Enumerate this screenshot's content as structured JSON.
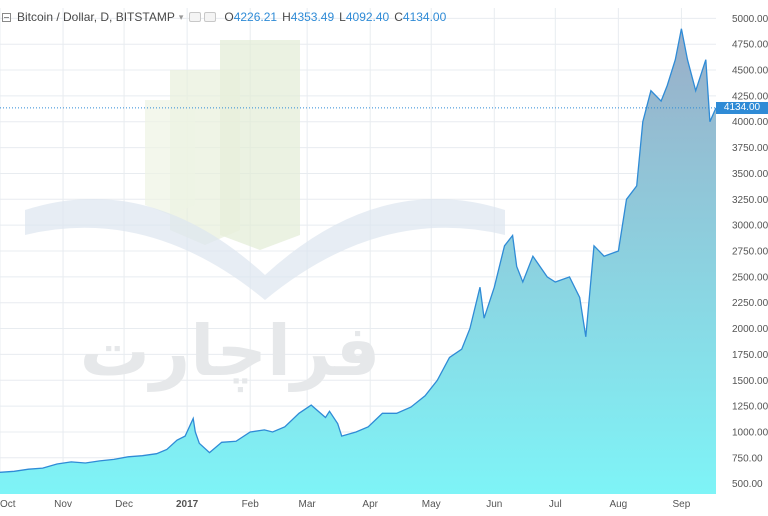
{
  "legend": {
    "title": "Bitcoin / Dollar, D, BITSTAMP",
    "open_key": "O",
    "open": "4226.21",
    "high_key": "H",
    "high": "4353.49",
    "low_key": "L",
    "low": "4092.40",
    "close_key": "C",
    "close": "4134.00"
  },
  "colors": {
    "line": "#2f8bd6",
    "fill_top": "#9aaec8",
    "fill_bottom": "#7ef4f7",
    "grid": "#e8ecf0",
    "axis_text": "#555555",
    "last_price": "#2f8bd6",
    "watermark": "#e2ecd6"
  },
  "watermark_text": "فراچارت",
  "chart_data": {
    "type": "area",
    "title": "Bitcoin / Dollar, D, BITSTAMP",
    "grid": true,
    "last_price": 4134.0,
    "last_price_label": "4134.00",
    "ylim": [
      400,
      5100
    ],
    "yticks": [
      500,
      750,
      1000,
      1250,
      1500,
      1750,
      2000,
      2250,
      2500,
      2750,
      3000,
      3250,
      3500,
      3750,
      4000,
      4250,
      4500,
      4750,
      5000
    ],
    "ytick_labels": [
      "500.00",
      "750.00",
      "1000.00",
      "1250.00",
      "1500.00",
      "1750.00",
      "2000.00",
      "2250.00",
      "2500.00",
      "2750.00",
      "3000.00",
      "3250.00",
      "3500.00",
      "3750.00",
      "4000.00",
      "4250.00",
      "4500.00",
      "4750.00",
      "5000.00"
    ],
    "xlim": [
      "2016-10-01",
      "2017-09-18"
    ],
    "xticks": [
      "2016-10-01",
      "2016-11-01",
      "2016-12-01",
      "2017-01-01",
      "2017-02-01",
      "2017-03-01",
      "2017-04-01",
      "2017-05-01",
      "2017-06-01",
      "2017-07-01",
      "2017-08-01",
      "2017-09-01"
    ],
    "xtick_labels": [
      "Oct",
      "Nov",
      "Dec",
      "2017",
      "Feb",
      "Mar",
      "Apr",
      "May",
      "Jun",
      "Jul",
      "Aug",
      "Sep"
    ],
    "series": [
      {
        "x": [
          "2016-10-01",
          "2016-10-08",
          "2016-10-15",
          "2016-10-22",
          "2016-10-29",
          "2016-11-05",
          "2016-11-12",
          "2016-11-19",
          "2016-11-26",
          "2016-12-03",
          "2016-12-10",
          "2016-12-17",
          "2016-12-22",
          "2016-12-27",
          "2016-12-31",
          "2017-01-04",
          "2017-01-05",
          "2017-01-07",
          "2017-01-12",
          "2017-01-18",
          "2017-01-25",
          "2017-02-01",
          "2017-02-08",
          "2017-02-12",
          "2017-02-18",
          "2017-02-25",
          "2017-03-03",
          "2017-03-10",
          "2017-03-12",
          "2017-03-16",
          "2017-03-18",
          "2017-03-25",
          "2017-03-31",
          "2017-04-07",
          "2017-04-14",
          "2017-04-21",
          "2017-04-28",
          "2017-05-04",
          "2017-05-10",
          "2017-05-16",
          "2017-05-20",
          "2017-05-25",
          "2017-05-27",
          "2017-06-01",
          "2017-06-06",
          "2017-06-10",
          "2017-06-12",
          "2017-06-15",
          "2017-06-20",
          "2017-06-27",
          "2017-07-01",
          "2017-07-08",
          "2017-07-13",
          "2017-07-16",
          "2017-07-20",
          "2017-07-25",
          "2017-08-01",
          "2017-08-05",
          "2017-08-10",
          "2017-08-13",
          "2017-08-17",
          "2017-08-22",
          "2017-08-25",
          "2017-08-29",
          "2017-09-01",
          "2017-09-04",
          "2017-09-08",
          "2017-09-13",
          "2017-09-15",
          "2017-09-18"
        ],
        "y": [
          610,
          620,
          640,
          650,
          690,
          710,
          700,
          720,
          735,
          760,
          770,
          790,
          830,
          920,
          960,
          1130,
          1000,
          890,
          800,
          900,
          910,
          1000,
          1020,
          1000,
          1050,
          1180,
          1260,
          1140,
          1200,
          1080,
          960,
          1000,
          1050,
          1180,
          1180,
          1240,
          1350,
          1500,
          1720,
          1800,
          2000,
          2400,
          2100,
          2400,
          2800,
          2900,
          2600,
          2450,
          2700,
          2500,
          2450,
          2500,
          2300,
          1920,
          2800,
          2700,
          2750,
          3250,
          3380,
          4000,
          4300,
          4200,
          4350,
          4600,
          4900,
          4600,
          4300,
          4600,
          4000,
          4134
        ]
      }
    ]
  }
}
